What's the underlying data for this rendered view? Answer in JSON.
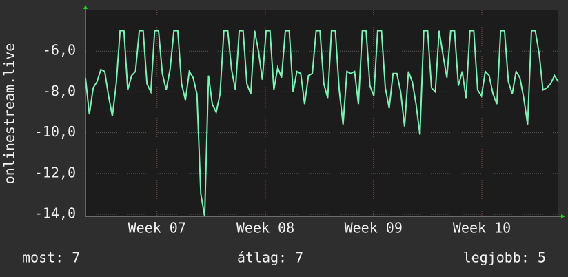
{
  "chart_data": {
    "type": "line",
    "y_label": "onlinestream.live",
    "values": [
      -7.3,
      -9.1,
      -7.8,
      -7.5,
      -6.9,
      -7.0,
      -8.2,
      -9.2,
      -7.6,
      -5.0,
      -5.0,
      -7.9,
      -7.2,
      -7.0,
      -5.0,
      -5.0,
      -7.6,
      -8.0,
      -5.0,
      -5.0,
      -7.1,
      -7.9,
      -6.9,
      -5.0,
      -5.0,
      -7.6,
      -8.4,
      -7.0,
      -7.3,
      -8.1,
      -13.0,
      -14.1,
      -7.2,
      -8.6,
      -9.0,
      -8.1,
      -5.0,
      -5.0,
      -6.9,
      -7.9,
      -5.0,
      -5.0,
      -7.6,
      -8.1,
      -5.0,
      -6.0,
      -7.4,
      -5.0,
      -5.0,
      -7.9,
      -6.8,
      -7.3,
      -5.0,
      -5.0,
      -8.0,
      -7.0,
      -7.1,
      -8.6,
      -7.2,
      -7.1,
      -5.0,
      -5.0,
      -7.6,
      -8.3,
      -5.0,
      -5.0,
      -7.9,
      -9.6,
      -7.0,
      -7.1,
      -7.0,
      -8.6,
      -5.0,
      -5.0,
      -7.7,
      -8.2,
      -5.0,
      -5.0,
      -7.8,
      -8.8,
      -7.1,
      -7.1,
      -8.0,
      -9.7,
      -7.0,
      -7.5,
      -8.6,
      -10.1,
      -5.0,
      -5.0,
      -7.8,
      -8.0,
      -5.0,
      -6.2,
      -7.3,
      -5.0,
      -5.0,
      -7.7,
      -7.0,
      -8.3,
      -5.0,
      -5.0,
      -7.9,
      -8.2,
      -7.0,
      -7.2,
      -8.1,
      -8.6,
      -5.0,
      -5.0,
      -7.5,
      -8.1,
      -7.0,
      -7.3,
      -8.3,
      -9.6,
      -5.0,
      -5.0,
      -6.1,
      -7.9,
      -7.8,
      -7.6,
      -7.2,
      -7.5
    ],
    "color": "#7ff0b4",
    "xlim": [
      0,
      123
    ],
    "xticks": [
      {
        "value": 18.6,
        "label": "Week 07"
      },
      {
        "value": 46.8,
        "label": "Week 08"
      },
      {
        "value": 74.9,
        "label": "Week 09"
      },
      {
        "value": 103.1,
        "label": "Week 10"
      }
    ],
    "ylim": [
      -14.1,
      -4
    ],
    "yticks": [
      {
        "value": -14,
        "label": "-14,0"
      },
      {
        "value": -12,
        "label": "-12,0"
      },
      {
        "value": -10,
        "label": "-10,0"
      },
      {
        "value": -8,
        "label": "-8,0"
      },
      {
        "value": -6,
        "label": "-6,0"
      }
    ],
    "grid": true,
    "footer": [
      "most: 7",
      "átlag: 7",
      "legjobb: 5"
    ]
  }
}
